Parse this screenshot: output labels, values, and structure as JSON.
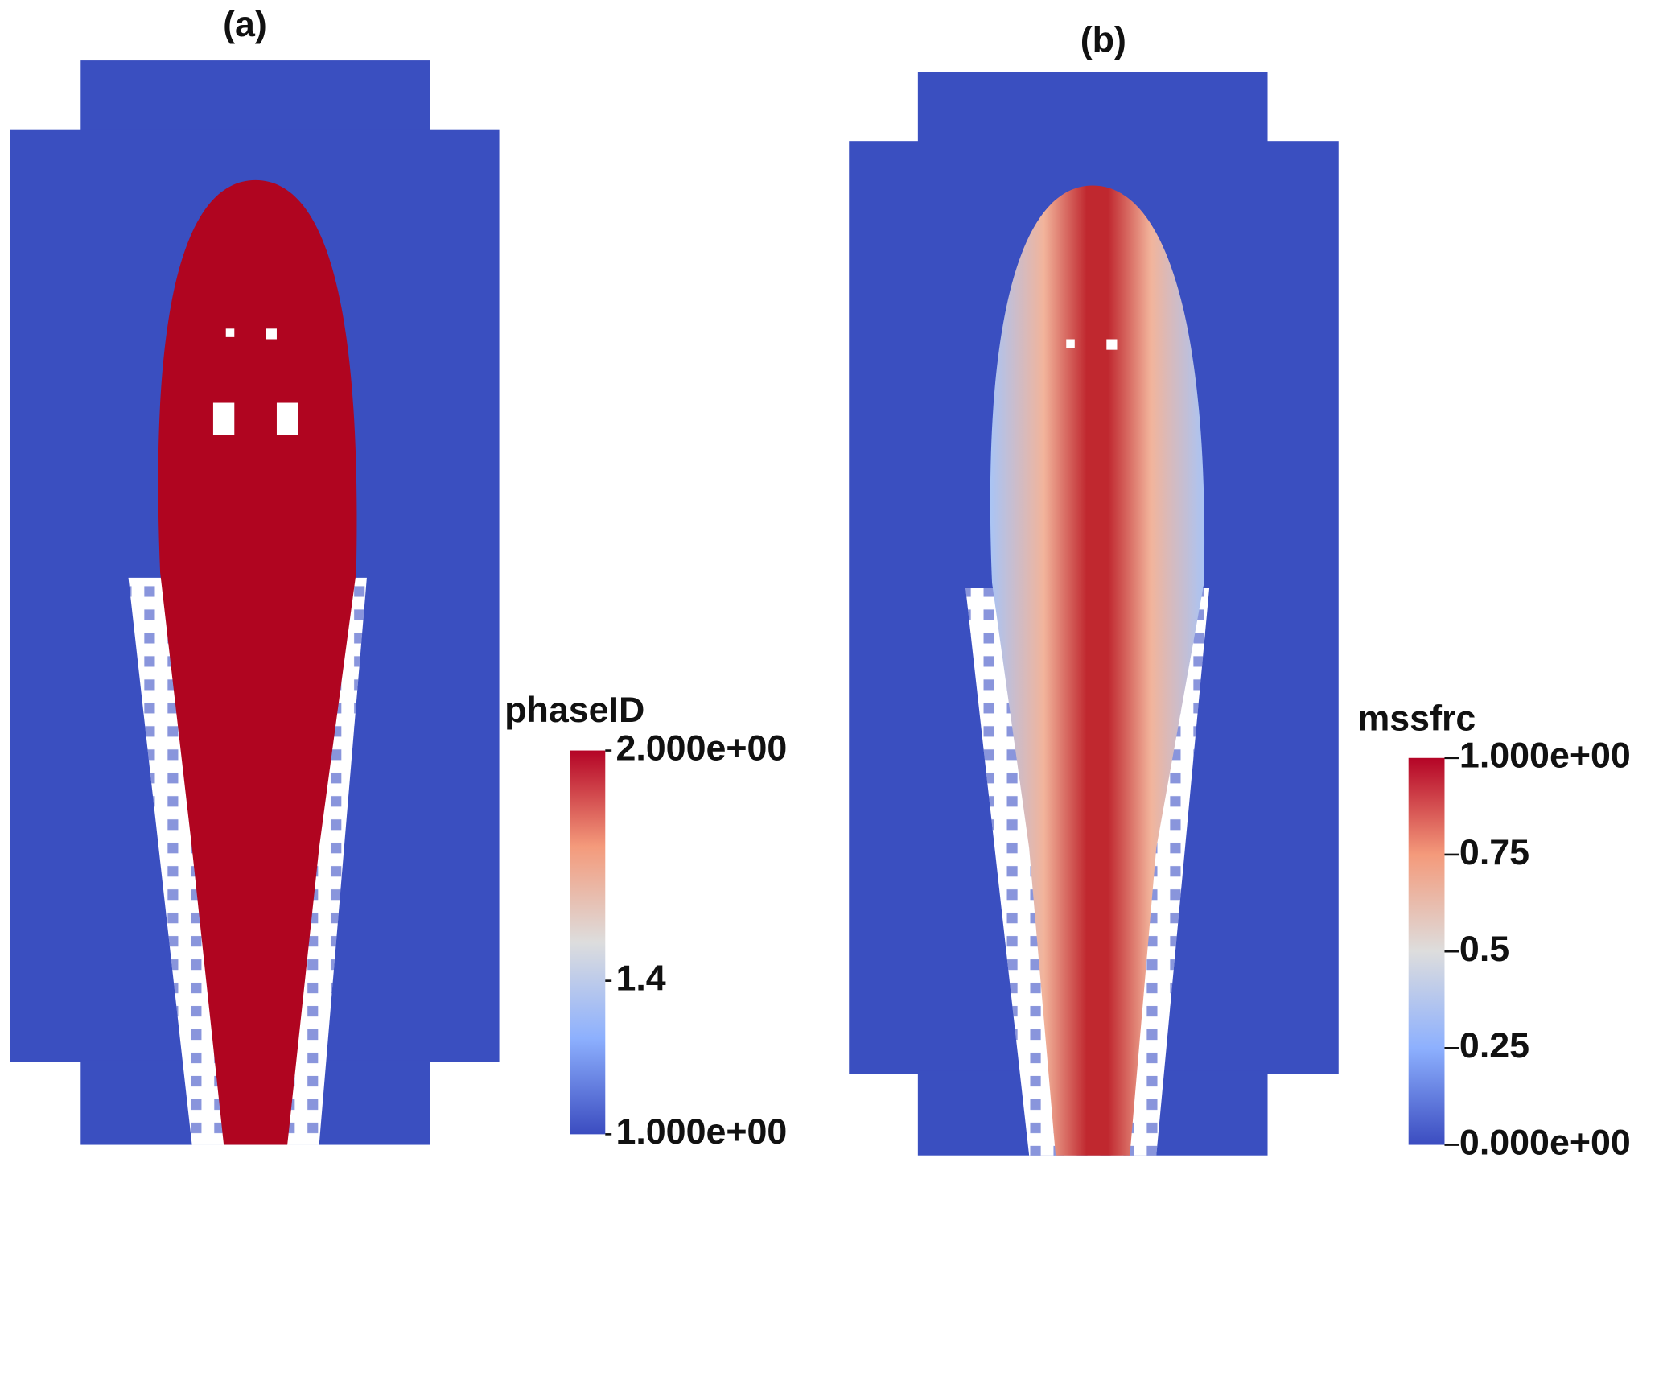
{
  "panels": [
    {
      "label": "(a)",
      "colorbar": {
        "title": "phaseID",
        "range": [
          1,
          2
        ],
        "ticks": [
          {
            "value": 2,
            "label": "2.000e+00"
          },
          1.4,
          {
            "value": 1,
            "label": "1.000e+00"
          }
        ]
      }
    },
    {
      "label": "(b)",
      "colorbar": {
        "title": "mssfrc",
        "range": [
          0,
          1
        ],
        "ticks": [
          {
            "value": 1,
            "label": "1.000e+00"
          },
          0.75,
          0.5,
          0.25,
          {
            "value": 0,
            "label": "0.000e+00"
          }
        ]
      }
    }
  ]
}
